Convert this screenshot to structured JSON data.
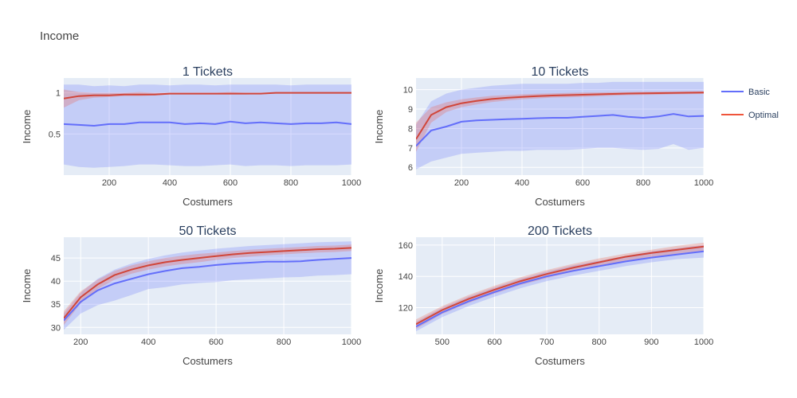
{
  "title": "Income",
  "legend": [
    {
      "name": "Basic",
      "color": "#636efa"
    },
    {
      "name": "Optimal",
      "color": "#ef553b"
    }
  ],
  "colors": {
    "plot_bg": "#e5ecf6",
    "grid": "#ffffff",
    "basic_line": "#636efa",
    "optimal_line": "#d0463a",
    "basic_band": "rgba(99,110,250,0.25)",
    "optimal_band": "rgba(239,85,59,0.25)",
    "text": "#444444"
  },
  "chart_data": [
    {
      "type": "line",
      "title": "1 Tickets",
      "xlabel": "Costumers",
      "ylabel": "Income",
      "xlim": [
        50,
        1000
      ],
      "ylim": [
        0.0,
        1.18
      ],
      "xticks": [
        200,
        400,
        600,
        800,
        1000
      ],
      "yticks": [
        0.5,
        1
      ],
      "ytick_labels": [
        "0.5",
        "1"
      ],
      "grid": true,
      "series": [
        {
          "name": "Basic",
          "x": [
            50,
            100,
            150,
            200,
            250,
            300,
            350,
            400,
            450,
            500,
            550,
            600,
            650,
            700,
            750,
            800,
            850,
            900,
            950,
            1000
          ],
          "y": [
            0.62,
            0.61,
            0.6,
            0.62,
            0.62,
            0.64,
            0.64,
            0.64,
            0.62,
            0.63,
            0.62,
            0.65,
            0.63,
            0.64,
            0.63,
            0.62,
            0.63,
            0.63,
            0.64,
            0.62
          ],
          "upper": [
            1.1,
            1.1,
            1.08,
            1.09,
            1.08,
            1.1,
            1.1,
            1.09,
            1.1,
            1.1,
            1.09,
            1.1,
            1.1,
            1.1,
            1.1,
            1.09,
            1.1,
            1.1,
            1.1,
            1.1
          ],
          "lower": [
            0.13,
            0.1,
            0.09,
            0.1,
            0.11,
            0.13,
            0.13,
            0.12,
            0.11,
            0.11,
            0.12,
            0.13,
            0.11,
            0.12,
            0.12,
            0.11,
            0.12,
            0.12,
            0.12,
            0.13
          ]
        },
        {
          "name": "Optimal",
          "x": [
            50,
            100,
            150,
            200,
            250,
            300,
            350,
            400,
            450,
            500,
            550,
            600,
            650,
            700,
            750,
            800,
            850,
            900,
            950,
            1000
          ],
          "y": [
            0.93,
            0.96,
            0.97,
            0.97,
            0.98,
            0.98,
            0.98,
            0.99,
            0.99,
            0.99,
            0.99,
            0.99,
            0.99,
            0.99,
            1.0,
            1.0,
            1.0,
            1.0,
            1.0,
            1.0
          ],
          "upper": [
            1.04,
            1.01,
            1.0,
            1.0,
            1.0,
            1.01,
            1.0,
            1.0,
            1.0,
            1.0,
            1.0,
            1.01,
            1.0,
            1.0,
            1.0,
            1.0,
            1.0,
            1.0,
            1.0,
            1.0
          ],
          "lower": [
            0.82,
            0.91,
            0.94,
            0.95,
            0.96,
            0.96,
            0.97,
            0.98,
            0.98,
            0.98,
            0.98,
            0.98,
            0.98,
            0.99,
            0.99,
            0.99,
            0.99,
            0.99,
            0.99,
            0.99
          ]
        }
      ]
    },
    {
      "type": "line",
      "title": "10 Tickets",
      "xlabel": "Costumers",
      "ylabel": "Income",
      "xlim": [
        50,
        1000
      ],
      "ylim": [
        5.6,
        10.6
      ],
      "xticks": [
        200,
        400,
        600,
        800,
        1000
      ],
      "yticks": [
        6,
        7,
        8,
        9,
        10
      ],
      "ytick_labels": [
        "6",
        "7",
        "8",
        "9",
        "10"
      ],
      "grid": true,
      "series": [
        {
          "name": "Basic",
          "x": [
            50,
            100,
            150,
            200,
            250,
            300,
            350,
            400,
            450,
            500,
            550,
            600,
            650,
            700,
            750,
            800,
            850,
            900,
            950,
            1000
          ],
          "y": [
            7.1,
            7.9,
            8.1,
            8.35,
            8.42,
            8.45,
            8.48,
            8.5,
            8.53,
            8.55,
            8.55,
            8.6,
            8.65,
            8.7,
            8.6,
            8.55,
            8.62,
            8.75,
            8.62,
            8.65
          ],
          "upper": [
            8.2,
            9.4,
            9.8,
            10.0,
            10.1,
            10.2,
            10.25,
            10.3,
            10.3,
            10.3,
            10.3,
            10.35,
            10.35,
            10.4,
            10.4,
            10.4,
            10.4,
            10.4,
            10.4,
            10.4
          ],
          "lower": [
            5.9,
            6.3,
            6.5,
            6.7,
            6.75,
            6.8,
            6.85,
            6.85,
            6.9,
            6.9,
            6.9,
            6.95,
            7.0,
            7.0,
            6.95,
            6.9,
            6.95,
            7.2,
            6.9,
            7.0
          ]
        },
        {
          "name": "Optimal",
          "x": [
            50,
            100,
            150,
            200,
            250,
            300,
            350,
            400,
            450,
            500,
            550,
            600,
            650,
            700,
            750,
            800,
            850,
            900,
            950,
            1000
          ],
          "y": [
            7.45,
            8.7,
            9.1,
            9.3,
            9.42,
            9.52,
            9.58,
            9.63,
            9.67,
            9.7,
            9.72,
            9.74,
            9.76,
            9.78,
            9.8,
            9.81,
            9.82,
            9.83,
            9.84,
            9.85
          ],
          "upper": [
            8.3,
            9.1,
            9.35,
            9.5,
            9.6,
            9.68,
            9.72,
            9.76,
            9.79,
            9.81,
            9.83,
            9.85,
            9.86,
            9.87,
            9.88,
            9.89,
            9.9,
            9.9,
            9.91,
            9.92
          ],
          "lower": [
            6.8,
            8.3,
            8.85,
            9.1,
            9.24,
            9.36,
            9.44,
            9.5,
            9.55,
            9.59,
            9.61,
            9.63,
            9.66,
            9.69,
            9.72,
            9.73,
            9.74,
            9.76,
            9.77,
            9.78
          ]
        }
      ]
    },
    {
      "type": "line",
      "title": "50 Tickets",
      "xlabel": "Costumers",
      "ylabel": "Income",
      "xlim": [
        150,
        1000
      ],
      "ylim": [
        28.5,
        49.5
      ],
      "xticks": [
        200,
        400,
        600,
        800,
        1000
      ],
      "yticks": [
        30,
        35,
        40,
        45
      ],
      "ytick_labels": [
        "30",
        "35",
        "40",
        "45"
      ],
      "grid": true,
      "series": [
        {
          "name": "Basic",
          "x": [
            150,
            200,
            250,
            300,
            350,
            400,
            450,
            500,
            550,
            600,
            650,
            700,
            750,
            800,
            850,
            900,
            950,
            1000
          ],
          "y": [
            31.5,
            35.5,
            38.0,
            39.5,
            40.5,
            41.5,
            42.2,
            42.8,
            43.1,
            43.5,
            43.8,
            44.0,
            44.2,
            44.2,
            44.3,
            44.6,
            44.8,
            45.0
          ],
          "upper": [
            33.0,
            37.5,
            40.5,
            42.5,
            43.8,
            44.8,
            45.6,
            46.2,
            46.6,
            47.0,
            47.3,
            47.6,
            47.8,
            48.0,
            48.2,
            48.4,
            48.5,
            48.6
          ],
          "lower": [
            29.5,
            33.0,
            34.8,
            35.8,
            37.0,
            38.3,
            38.7,
            39.3,
            39.6,
            39.8,
            40.2,
            40.4,
            40.6,
            40.8,
            40.9,
            41.2,
            41.3,
            41.5
          ]
        },
        {
          "name": "Optimal",
          "x": [
            150,
            200,
            250,
            300,
            350,
            400,
            450,
            500,
            550,
            600,
            650,
            700,
            750,
            800,
            850,
            900,
            950,
            1000
          ],
          "y": [
            32.0,
            36.5,
            39.3,
            41.3,
            42.5,
            43.4,
            44.1,
            44.6,
            45.0,
            45.4,
            45.8,
            46.1,
            46.3,
            46.5,
            46.7,
            46.9,
            47.0,
            47.2
          ],
          "upper": [
            33.5,
            37.8,
            40.3,
            42.2,
            43.4,
            44.3,
            45.0,
            45.5,
            45.9,
            46.2,
            46.5,
            46.8,
            47.0,
            47.2,
            47.4,
            47.6,
            47.7,
            47.9
          ],
          "lower": [
            30.5,
            35.2,
            38.3,
            40.3,
            41.6,
            42.5,
            43.2,
            43.7,
            44.1,
            44.6,
            45.0,
            45.3,
            45.6,
            45.8,
            46.0,
            46.2,
            46.3,
            46.5
          ]
        }
      ]
    },
    {
      "type": "line",
      "title": "200 Tickets",
      "xlabel": "Costumers",
      "ylabel": "Income",
      "xlim": [
        450,
        1000
      ],
      "ylim": [
        103,
        165
      ],
      "xticks": [
        500,
        600,
        700,
        800,
        900,
        1000
      ],
      "yticks": [
        120,
        140,
        160
      ],
      "ytick_labels": [
        "120",
        "140",
        "160"
      ],
      "grid": true,
      "series": [
        {
          "name": "Basic",
          "x": [
            450,
            500,
            550,
            600,
            650,
            700,
            750,
            800,
            850,
            900,
            950,
            1000
          ],
          "y": [
            108,
            117,
            124,
            130,
            135.5,
            140,
            143.5,
            146.5,
            149.5,
            152,
            154,
            156
          ],
          "upper": [
            111,
            120,
            127,
            133,
            138.5,
            143,
            147,
            150,
            153,
            156,
            158,
            160
          ],
          "lower": [
            105,
            114,
            121,
            127,
            132.5,
            137,
            140.5,
            143.5,
            146.5,
            149,
            151,
            152
          ]
        },
        {
          "name": "Optimal",
          "x": [
            450,
            500,
            550,
            600,
            650,
            700,
            750,
            800,
            850,
            900,
            950,
            1000
          ],
          "y": [
            109.5,
            118.5,
            125.5,
            131.5,
            137,
            141.5,
            145.5,
            149,
            152.5,
            155,
            157,
            159
          ],
          "upper": [
            112.5,
            121,
            128,
            134,
            139.5,
            144,
            148,
            151.5,
            154.5,
            157,
            159.5,
            161.5
          ],
          "lower": [
            106.5,
            116,
            123,
            129,
            134.5,
            139,
            143,
            146.5,
            150,
            152.5,
            154.5,
            156.5
          ]
        }
      ]
    }
  ]
}
